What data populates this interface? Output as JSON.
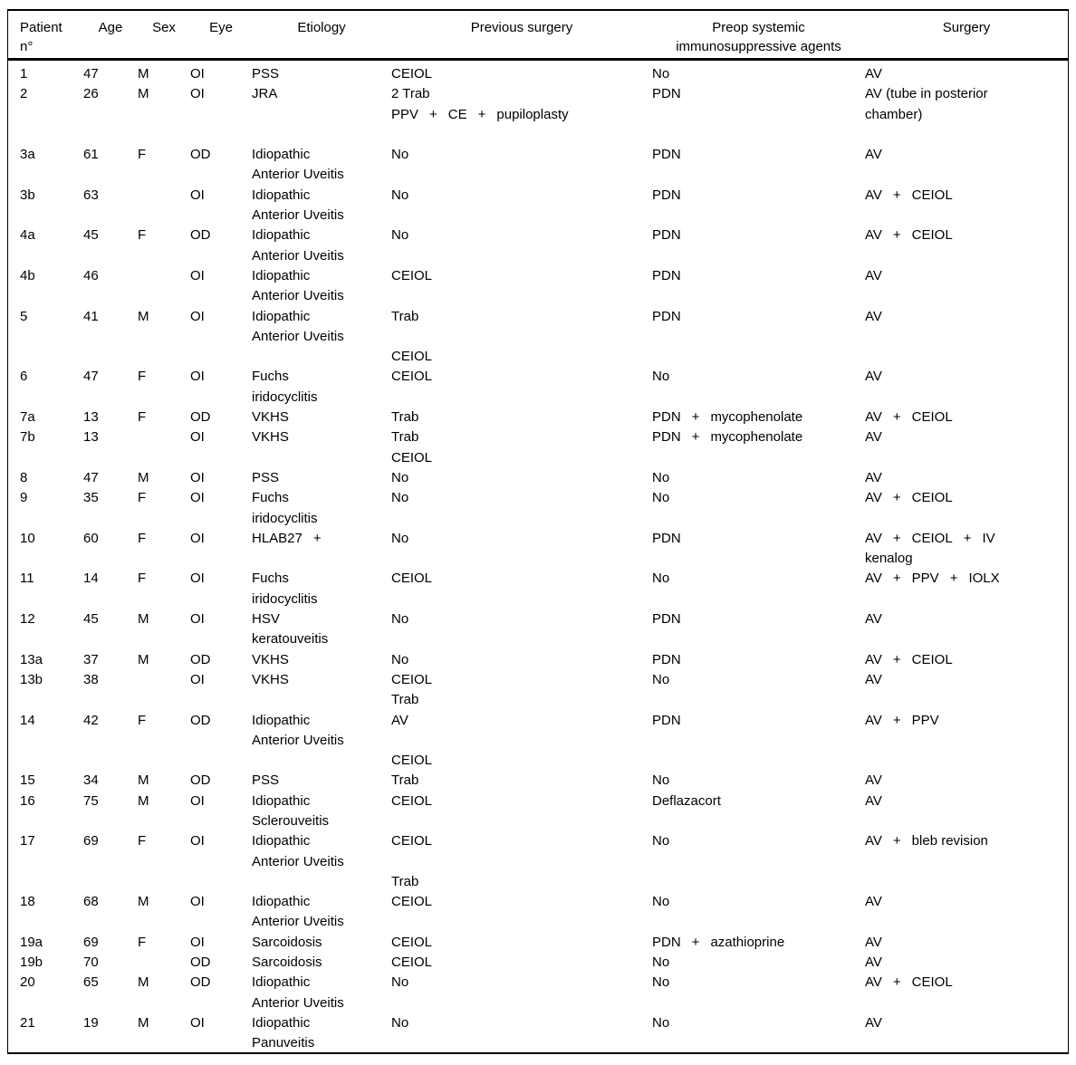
{
  "colors": {
    "background": "#ffffff",
    "text": "#000000",
    "rule": "#000000"
  },
  "table": {
    "columns": [
      {
        "id": "patient",
        "lines": [
          "Patient",
          "n°"
        ]
      },
      {
        "id": "age",
        "lines": [
          "Age"
        ]
      },
      {
        "id": "sex",
        "lines": [
          "Sex"
        ]
      },
      {
        "id": "eye",
        "lines": [
          "Eye"
        ]
      },
      {
        "id": "etiology",
        "lines": [
          "Etiology"
        ]
      },
      {
        "id": "previous_surgery",
        "lines": [
          "Previous surgery"
        ]
      },
      {
        "id": "preop_agents",
        "lines": [
          "Preop systemic",
          "immunosuppressive agents"
        ]
      },
      {
        "id": "surgery",
        "lines": [
          "Surgery"
        ]
      }
    ],
    "rows": [
      {
        "patient": [
          "1"
        ],
        "age": [
          "47"
        ],
        "sex": [
          "M"
        ],
        "eye": [
          "OI"
        ],
        "etiology": [
          "PSS"
        ],
        "previous_surgery": [
          "CEIOL"
        ],
        "preop_agents": [
          "No"
        ],
        "surgery": [
          "AV"
        ]
      },
      {
        "patient": [
          "2"
        ],
        "age": [
          "26"
        ],
        "sex": [
          "M"
        ],
        "eye": [
          "OI"
        ],
        "etiology": [
          "JRA"
        ],
        "previous_surgery": [
          "2 Trab",
          "PPV + CE + pupiloplasty",
          ""
        ],
        "preop_agents": [
          "PDN"
        ],
        "surgery": [
          "AV (tube in posterior",
          "chamber)"
        ]
      },
      {
        "patient": [
          "3a"
        ],
        "age": [
          "61"
        ],
        "sex": [
          "F"
        ],
        "eye": [
          "OD"
        ],
        "etiology": [
          "Idiopathic",
          "Anterior Uveitis"
        ],
        "previous_surgery": [
          "No"
        ],
        "preop_agents": [
          "PDN"
        ],
        "surgery": [
          "AV"
        ]
      },
      {
        "patient": [
          "3b"
        ],
        "age": [
          "63"
        ],
        "sex": [
          ""
        ],
        "eye": [
          "OI"
        ],
        "etiology": [
          "Idiopathic",
          "Anterior Uveitis"
        ],
        "previous_surgery": [
          "No"
        ],
        "preop_agents": [
          "PDN"
        ],
        "surgery": [
          "AV + CEIOL"
        ]
      },
      {
        "patient": [
          "4a"
        ],
        "age": [
          "45"
        ],
        "sex": [
          "F"
        ],
        "eye": [
          "OD"
        ],
        "etiology": [
          "Idiopathic",
          "Anterior Uveitis"
        ],
        "previous_surgery": [
          "No"
        ],
        "preop_agents": [
          "PDN"
        ],
        "surgery": [
          "AV + CEIOL"
        ]
      },
      {
        "patient": [
          "4b"
        ],
        "age": [
          "46"
        ],
        "sex": [
          ""
        ],
        "eye": [
          "OI"
        ],
        "etiology": [
          "Idiopathic",
          "Anterior Uveitis"
        ],
        "previous_surgery": [
          "CEIOL"
        ],
        "preop_agents": [
          "PDN"
        ],
        "surgery": [
          "AV"
        ]
      },
      {
        "patient": [
          "5"
        ],
        "age": [
          "41"
        ],
        "sex": [
          "M"
        ],
        "eye": [
          "OI"
        ],
        "etiology": [
          "Idiopathic",
          "Anterior Uveitis"
        ],
        "previous_surgery": [
          "Trab",
          "",
          "CEIOL"
        ],
        "preop_agents": [
          "PDN"
        ],
        "surgery": [
          "AV"
        ]
      },
      {
        "patient": [
          "6"
        ],
        "age": [
          "47"
        ],
        "sex": [
          "F"
        ],
        "eye": [
          "OI"
        ],
        "etiology": [
          "Fuchs",
          "iridocyclitis"
        ],
        "previous_surgery": [
          "CEIOL"
        ],
        "preop_agents": [
          "No"
        ],
        "surgery": [
          "AV"
        ]
      },
      {
        "patient": [
          "7a"
        ],
        "age": [
          "13"
        ],
        "sex": [
          "F"
        ],
        "eye": [
          "OD"
        ],
        "etiology": [
          "VKHS"
        ],
        "previous_surgery": [
          "Trab"
        ],
        "preop_agents": [
          "PDN + mycophenolate"
        ],
        "surgery": [
          "AV + CEIOL"
        ]
      },
      {
        "patient": [
          "7b"
        ],
        "age": [
          "13"
        ],
        "sex": [
          ""
        ],
        "eye": [
          "OI"
        ],
        "etiology": [
          "VKHS"
        ],
        "previous_surgery": [
          "Trab",
          "CEIOL"
        ],
        "preop_agents": [
          "PDN + mycophenolate"
        ],
        "surgery": [
          "AV"
        ]
      },
      {
        "patient": [
          "8"
        ],
        "age": [
          "47"
        ],
        "sex": [
          "M"
        ],
        "eye": [
          "OI"
        ],
        "etiology": [
          "PSS"
        ],
        "previous_surgery": [
          "No"
        ],
        "preop_agents": [
          "No"
        ],
        "surgery": [
          "AV"
        ]
      },
      {
        "patient": [
          "9"
        ],
        "age": [
          "35"
        ],
        "sex": [
          "F"
        ],
        "eye": [
          "OI"
        ],
        "etiology": [
          "Fuchs",
          "iridocyclitis"
        ],
        "previous_surgery": [
          "No"
        ],
        "preop_agents": [
          "No"
        ],
        "surgery": [
          "AV + CEIOL"
        ]
      },
      {
        "patient": [
          "10"
        ],
        "age": [
          "60"
        ],
        "sex": [
          "F"
        ],
        "eye": [
          "OI"
        ],
        "etiology": [
          "HLAB27 +"
        ],
        "previous_surgery": [
          "No"
        ],
        "preop_agents": [
          "PDN"
        ],
        "surgery": [
          "AV + CEIOL + IV",
          "kenalog"
        ]
      },
      {
        "patient": [
          "11"
        ],
        "age": [
          "14"
        ],
        "sex": [
          "F"
        ],
        "eye": [
          "OI"
        ],
        "etiology": [
          "Fuchs",
          "iridocyclitis"
        ],
        "previous_surgery": [
          "CEIOL"
        ],
        "preop_agents": [
          "No"
        ],
        "surgery": [
          "AV + PPV + IOLX"
        ]
      },
      {
        "patient": [
          "12"
        ],
        "age": [
          "45"
        ],
        "sex": [
          "M"
        ],
        "eye": [
          "OI"
        ],
        "etiology": [
          "HSV",
          "keratouveitis"
        ],
        "previous_surgery": [
          "No"
        ],
        "preop_agents": [
          "PDN"
        ],
        "surgery": [
          "AV"
        ]
      },
      {
        "patient": [
          "13a"
        ],
        "age": [
          "37"
        ],
        "sex": [
          "M"
        ],
        "eye": [
          "OD"
        ],
        "etiology": [
          "VKHS"
        ],
        "previous_surgery": [
          "No"
        ],
        "preop_agents": [
          "PDN"
        ],
        "surgery": [
          "AV + CEIOL"
        ]
      },
      {
        "patient": [
          "13b"
        ],
        "age": [
          "38"
        ],
        "sex": [
          ""
        ],
        "eye": [
          "OI"
        ],
        "etiology": [
          "VKHS"
        ],
        "previous_surgery": [
          "CEIOL",
          "Trab"
        ],
        "preop_agents": [
          "No"
        ],
        "surgery": [
          "AV"
        ]
      },
      {
        "patient": [
          "14"
        ],
        "age": [
          "42"
        ],
        "sex": [
          "F"
        ],
        "eye": [
          "OD"
        ],
        "etiology": [
          "Idiopathic",
          "Anterior Uveitis"
        ],
        "previous_surgery": [
          "AV",
          "",
          "CEIOL"
        ],
        "preop_agents": [
          "PDN"
        ],
        "surgery": [
          "AV + PPV"
        ]
      },
      {
        "patient": [
          "15"
        ],
        "age": [
          "34"
        ],
        "sex": [
          "M"
        ],
        "eye": [
          "OD"
        ],
        "etiology": [
          "PSS"
        ],
        "previous_surgery": [
          "Trab"
        ],
        "preop_agents": [
          "No"
        ],
        "surgery": [
          "AV"
        ]
      },
      {
        "patient": [
          "16"
        ],
        "age": [
          "75"
        ],
        "sex": [
          "M"
        ],
        "eye": [
          "OI"
        ],
        "etiology": [
          "Idiopathic",
          "Sclerouveitis"
        ],
        "previous_surgery": [
          "CEIOL"
        ],
        "preop_agents": [
          "Deflazacort"
        ],
        "surgery": [
          "AV"
        ]
      },
      {
        "patient": [
          "17"
        ],
        "age": [
          "69"
        ],
        "sex": [
          "F"
        ],
        "eye": [
          "OI"
        ],
        "etiology": [
          "Idiopathic",
          "Anterior Uveitis"
        ],
        "previous_surgery": [
          "CEIOL",
          "",
          "Trab"
        ],
        "preop_agents": [
          "No"
        ],
        "surgery": [
          "AV + bleb revision"
        ]
      },
      {
        "patient": [
          "18"
        ],
        "age": [
          "68"
        ],
        "sex": [
          "M"
        ],
        "eye": [
          "OI"
        ],
        "etiology": [
          "Idiopathic",
          "Anterior Uveitis"
        ],
        "previous_surgery": [
          "CEIOL"
        ],
        "preop_agents": [
          "No"
        ],
        "surgery": [
          "AV"
        ]
      },
      {
        "patient": [
          "19a"
        ],
        "age": [
          "69"
        ],
        "sex": [
          "F"
        ],
        "eye": [
          "OI"
        ],
        "etiology": [
          "Sarcoidosis"
        ],
        "previous_surgery": [
          "CEIOL"
        ],
        "preop_agents": [
          "PDN + azathioprine"
        ],
        "surgery": [
          "AV"
        ]
      },
      {
        "patient": [
          "19b"
        ],
        "age": [
          "70"
        ],
        "sex": [
          ""
        ],
        "eye": [
          "OD"
        ],
        "etiology": [
          "Sarcoidosis"
        ],
        "previous_surgery": [
          "CEIOL"
        ],
        "preop_agents": [
          "No"
        ],
        "surgery": [
          "AV"
        ]
      },
      {
        "patient": [
          "20"
        ],
        "age": [
          "65"
        ],
        "sex": [
          "M"
        ],
        "eye": [
          "OD"
        ],
        "etiology": [
          "Idiopathic",
          "Anterior Uveitis"
        ],
        "previous_surgery": [
          "No"
        ],
        "preop_agents": [
          "No"
        ],
        "surgery": [
          "AV + CEIOL"
        ]
      },
      {
        "patient": [
          "21"
        ],
        "age": [
          "19"
        ],
        "sex": [
          "M"
        ],
        "eye": [
          "OI"
        ],
        "etiology": [
          "Idiopathic",
          "Panuveitis"
        ],
        "previous_surgery": [
          "No"
        ],
        "preop_agents": [
          "No"
        ],
        "surgery": [
          "AV"
        ]
      }
    ]
  }
}
